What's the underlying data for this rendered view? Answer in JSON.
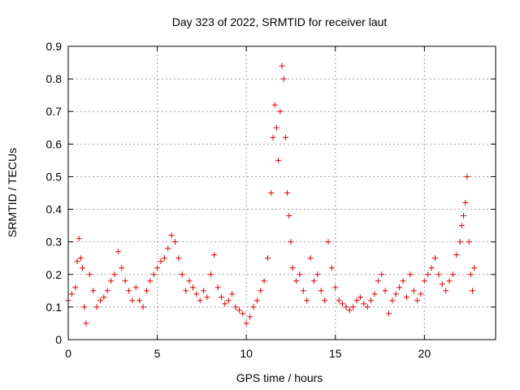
{
  "chart_data": {
    "type": "scatter",
    "title": "Day 323 of 2022, SRMTID for receiver laut",
    "xlabel": "GPS time / hours",
    "ylabel": "SRMTID / TECUs",
    "xlim": [
      0,
      24
    ],
    "ylim": [
      0,
      0.9
    ],
    "xticks": [
      0,
      5,
      10,
      15,
      20
    ],
    "xtick_labels": [
      "0",
      "5",
      "10",
      "15",
      "20"
    ],
    "yticks": [
      0,
      0.1,
      0.2,
      0.3,
      0.4,
      0.5,
      0.6,
      0.7,
      0.8,
      0.9
    ],
    "ytick_labels": [
      "0",
      "0.1",
      "0.2",
      "0.3",
      "0.4",
      "0.5",
      "0.6",
      "0.7",
      "0.8",
      "0.9"
    ],
    "grid": true,
    "marker": "+",
    "color": "#e00000",
    "series": [
      {
        "name": "SRMTID",
        "x": [
          0.0,
          0.2,
          0.4,
          0.5,
          0.6,
          0.7,
          0.8,
          0.9,
          1.0,
          1.2,
          1.4,
          1.6,
          1.8,
          2.0,
          2.2,
          2.4,
          2.6,
          2.8,
          3.0,
          3.2,
          3.4,
          3.6,
          3.8,
          4.0,
          4.2,
          4.4,
          4.6,
          4.8,
          5.0,
          5.2,
          5.4,
          5.6,
          5.8,
          6.0,
          6.2,
          6.4,
          6.6,
          6.8,
          7.0,
          7.2,
          7.4,
          7.6,
          7.8,
          8.0,
          8.2,
          8.4,
          8.6,
          8.8,
          9.0,
          9.2,
          9.4,
          9.6,
          9.8,
          10.0,
          10.2,
          10.4,
          10.6,
          10.8,
          11.0,
          11.2,
          11.4,
          11.5,
          11.6,
          11.7,
          11.8,
          11.9,
          12.0,
          12.1,
          12.2,
          12.3,
          12.4,
          12.5,
          12.6,
          12.8,
          13.0,
          13.2,
          13.4,
          13.6,
          13.8,
          14.0,
          14.2,
          14.4,
          14.6,
          14.8,
          15.0,
          15.2,
          15.4,
          15.6,
          15.8,
          16.0,
          16.2,
          16.4,
          16.6,
          16.8,
          17.0,
          17.2,
          17.4,
          17.6,
          17.8,
          18.0,
          18.2,
          18.4,
          18.6,
          18.8,
          19.0,
          19.2,
          19.4,
          19.6,
          19.8,
          20.0,
          20.2,
          20.4,
          20.6,
          20.8,
          21.0,
          21.2,
          21.4,
          21.6,
          21.8,
          22.0,
          22.1,
          22.2,
          22.3,
          22.4,
          22.5,
          22.6,
          22.7,
          22.8
        ],
        "y": [
          0.12,
          0.14,
          0.16,
          0.24,
          0.31,
          0.25,
          0.22,
          0.1,
          0.05,
          0.2,
          0.15,
          0.1,
          0.12,
          0.13,
          0.15,
          0.18,
          0.2,
          0.27,
          0.22,
          0.18,
          0.15,
          0.12,
          0.16,
          0.12,
          0.1,
          0.15,
          0.18,
          0.2,
          0.22,
          0.24,
          0.25,
          0.28,
          0.32,
          0.3,
          0.25,
          0.2,
          0.15,
          0.18,
          0.16,
          0.14,
          0.12,
          0.15,
          0.13,
          0.2,
          0.26,
          0.16,
          0.13,
          0.11,
          0.12,
          0.14,
          0.1,
          0.09,
          0.08,
          0.05,
          0.07,
          0.1,
          0.12,
          0.15,
          0.18,
          0.25,
          0.45,
          0.62,
          0.72,
          0.65,
          0.55,
          0.7,
          0.84,
          0.8,
          0.62,
          0.45,
          0.38,
          0.3,
          0.22,
          0.18,
          0.2,
          0.15,
          0.12,
          0.25,
          0.18,
          0.2,
          0.15,
          0.12,
          0.3,
          0.22,
          0.16,
          0.12,
          0.11,
          0.1,
          0.09,
          0.1,
          0.12,
          0.13,
          0.11,
          0.1,
          0.12,
          0.14,
          0.18,
          0.2,
          0.15,
          0.08,
          0.12,
          0.14,
          0.16,
          0.18,
          0.13,
          0.2,
          0.15,
          0.12,
          0.14,
          0.18,
          0.2,
          0.22,
          0.25,
          0.2,
          0.17,
          0.15,
          0.18,
          0.2,
          0.26,
          0.3,
          0.35,
          0.38,
          0.42,
          0.5,
          0.3,
          0.2,
          0.15,
          0.22
        ]
      }
    ]
  }
}
